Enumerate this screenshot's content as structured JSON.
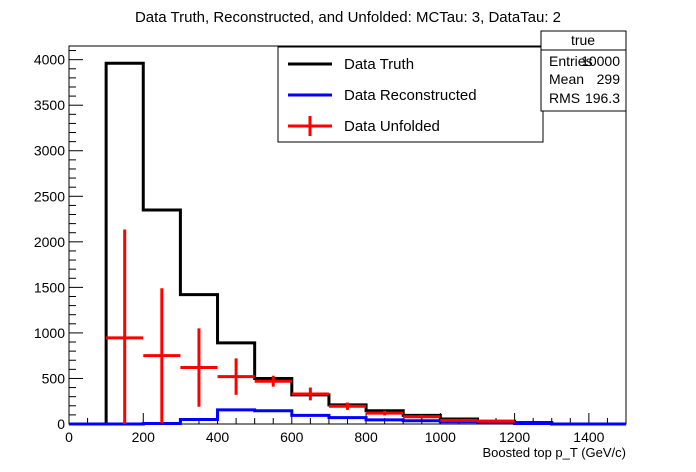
{
  "chart_data": {
    "type": "line",
    "title": "Data Truth, Reconstructed, and Unfolded: MCTau: 3, DataTau: 2",
    "xlabel": "Boosted top p_T (GeV/c)",
    "ylabel": "",
    "xlim": [
      0,
      1500
    ],
    "ylim": [
      0,
      4150
    ],
    "x_ticks": [
      "0",
      "200",
      "400",
      "600",
      "800",
      "1000",
      "1200",
      "1400"
    ],
    "y_ticks": [
      "0",
      "500",
      "1000",
      "1500",
      "2000",
      "2500",
      "3000",
      "3500",
      "4000"
    ],
    "bin_edges": [
      0,
      100,
      200,
      300,
      400,
      500,
      600,
      700,
      800,
      900,
      1000,
      1100,
      1200,
      1300,
      1400,
      1500
    ],
    "series": [
      {
        "name": "Data Truth",
        "color": "#000000",
        "style": "step",
        "values": [
          0,
          3960,
          2350,
          1420,
          890,
          500,
          320,
          210,
          145,
          95,
          55,
          30,
          15,
          0,
          0
        ]
      },
      {
        "name": "Data Reconstructed",
        "color": "#0000ff",
        "style": "step",
        "values": [
          0,
          0,
          5,
          50,
          155,
          145,
          95,
          70,
          45,
          35,
          25,
          15,
          5,
          0,
          0
        ]
      },
      {
        "name": "Data Unfolded",
        "color": "#ff0000",
        "style": "errorbar",
        "values": [
          0,
          945,
          750,
          620,
          520,
          470,
          330,
          195,
          120,
          80,
          40,
          30,
          0,
          0,
          0
        ],
        "errors": [
          0,
          1190,
          740,
          430,
          200,
          60,
          70,
          40,
          25,
          20,
          10,
          10,
          0,
          0,
          0
        ]
      }
    ],
    "legend": {
      "position": "top-center",
      "entries": [
        "Data Truth",
        "Data Reconstructed",
        "Data Unfolded"
      ]
    },
    "stats_box": {
      "title": "true",
      "rows": [
        {
          "label": "Entries",
          "value": "10000"
        },
        {
          "label": "Mean",
          "value": "299"
        },
        {
          "label": "RMS",
          "value": "196.3"
        }
      ]
    },
    "grid": false
  }
}
